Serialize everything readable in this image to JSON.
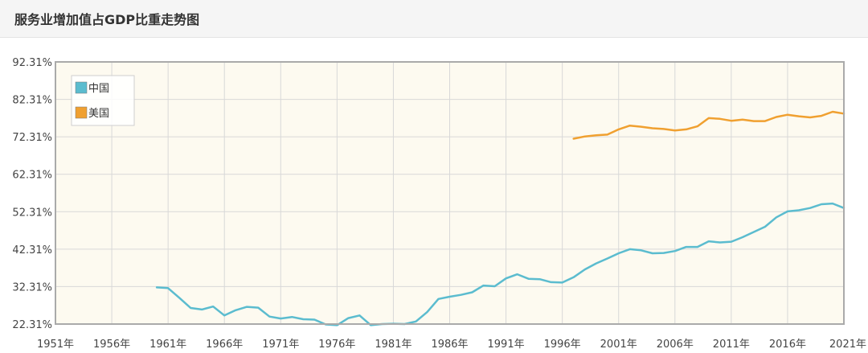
{
  "page": {
    "title": "服务业增加值占GDP比重走势图"
  },
  "colors": {
    "plot_background": "#fdfaf0",
    "grid": "#d8d8d8",
    "frame": "#aaaaaa",
    "china": "#5bbccf",
    "usa": "#f0a030"
  },
  "chart_data": {
    "type": "line",
    "title": "服务业增加值占GDP比重走势图",
    "xlabel": "",
    "ylabel": "",
    "grid": true,
    "legend_position": "top-left",
    "x_ticks": [
      "1951年",
      "1956年",
      "1961年",
      "1966年",
      "1971年",
      "1976年",
      "1981年",
      "1986年",
      "1991年",
      "1996年",
      "2001年",
      "2006年",
      "2011年",
      "2016年",
      "2021年"
    ],
    "y_ticks": [
      "22.31%",
      "32.31%",
      "42.31%",
      "52.31%",
      "62.31%",
      "72.31%",
      "82.31%",
      "92.31%"
    ],
    "xlim": [
      1951,
      2021
    ],
    "ylim": [
      22.31,
      92.31
    ],
    "series": [
      {
        "name": "中国",
        "color": "#5bbccf",
        "x": [
          1960,
          1961,
          1962,
          1963,
          1964,
          1965,
          1966,
          1967,
          1968,
          1969,
          1970,
          1971,
          1972,
          1973,
          1974,
          1975,
          1976,
          1977,
          1978,
          1979,
          1980,
          1981,
          1982,
          1983,
          1984,
          1985,
          1986,
          1987,
          1988,
          1989,
          1990,
          1991,
          1992,
          1993,
          1994,
          1995,
          1996,
          1997,
          1998,
          1999,
          2000,
          2001,
          2002,
          2003,
          2004,
          2005,
          2006,
          2007,
          2008,
          2009,
          2010,
          2011,
          2012,
          2013,
          2014,
          2015,
          2016,
          2017,
          2018,
          2019,
          2020,
          2021
        ],
        "values": [
          32.1,
          31.9,
          29.3,
          26.6,
          26.2,
          27.0,
          24.6,
          26.0,
          26.9,
          26.7,
          24.3,
          23.8,
          24.2,
          23.6,
          23.5,
          22.2,
          22.0,
          23.9,
          24.6,
          22.0,
          22.3,
          22.4,
          22.3,
          23.0,
          25.5,
          29.0,
          29.6,
          30.1,
          30.8,
          32.6,
          32.4,
          34.5,
          35.6,
          34.4,
          34.3,
          33.5,
          33.4,
          34.8,
          36.9,
          38.5,
          39.8,
          41.2,
          42.3,
          42.0,
          41.2,
          41.3,
          41.8,
          42.9,
          42.9,
          44.4,
          44.1,
          44.3,
          45.5,
          46.9,
          48.3,
          50.8,
          52.4,
          52.7,
          53.3,
          54.3,
          54.5,
          53.3
        ]
      },
      {
        "name": "美国",
        "color": "#f0a030",
        "x": [
          1997,
          1998,
          1999,
          2000,
          2001,
          2002,
          2003,
          2004,
          2005,
          2006,
          2007,
          2008,
          2009,
          2010,
          2011,
          2012,
          2013,
          2014,
          2015,
          2016,
          2017,
          2018,
          2019,
          2020,
          2021
        ],
        "values": [
          71.8,
          72.4,
          72.7,
          72.9,
          74.3,
          75.3,
          75.0,
          74.6,
          74.4,
          74.0,
          74.3,
          75.1,
          77.3,
          77.1,
          76.6,
          76.9,
          76.5,
          76.5,
          77.6,
          78.2,
          77.8,
          77.5,
          77.9,
          79.0,
          78.5
        ]
      }
    ]
  }
}
